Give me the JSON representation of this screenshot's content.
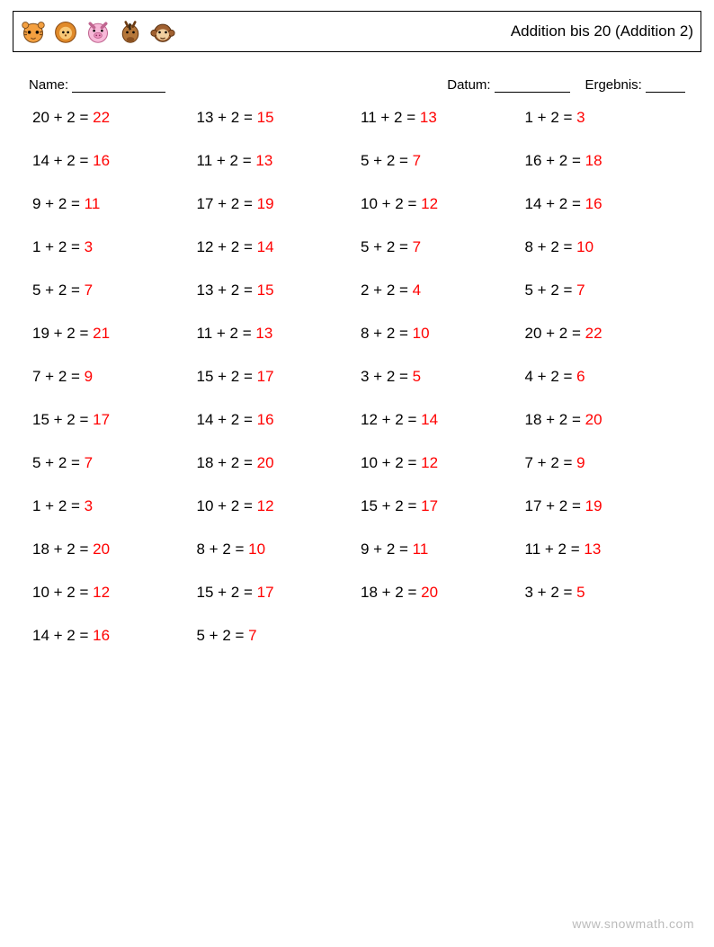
{
  "header": {
    "title": "Addition bis 20 (Addition 2)",
    "icons": [
      "tiger-icon",
      "lion-icon",
      "pig-icon",
      "horse-icon",
      "monkey-icon"
    ]
  },
  "meta": {
    "name_label": "Name:",
    "name_blank_width": 104,
    "date_label": "Datum:",
    "date_blank_width": 84,
    "result_label": "Ergebnis:",
    "result_blank_width": 44
  },
  "worksheet": {
    "type": "table",
    "font_size": 17,
    "answer_color": "#ff0000",
    "text_color": "#000000",
    "columns": 4,
    "row_gap": 28,
    "rows": [
      [
        {
          "a": 20,
          "b": 2,
          "ans": 22
        },
        {
          "a": 13,
          "b": 2,
          "ans": 15
        },
        {
          "a": 11,
          "b": 2,
          "ans": 13
        },
        {
          "a": 1,
          "b": 2,
          "ans": 3
        }
      ],
      [
        {
          "a": 14,
          "b": 2,
          "ans": 16
        },
        {
          "a": 11,
          "b": 2,
          "ans": 13
        },
        {
          "a": 5,
          "b": 2,
          "ans": 7
        },
        {
          "a": 16,
          "b": 2,
          "ans": 18
        }
      ],
      [
        {
          "a": 9,
          "b": 2,
          "ans": 11
        },
        {
          "a": 17,
          "b": 2,
          "ans": 19
        },
        {
          "a": 10,
          "b": 2,
          "ans": 12
        },
        {
          "a": 14,
          "b": 2,
          "ans": 16
        }
      ],
      [
        {
          "a": 1,
          "b": 2,
          "ans": 3
        },
        {
          "a": 12,
          "b": 2,
          "ans": 14
        },
        {
          "a": 5,
          "b": 2,
          "ans": 7
        },
        {
          "a": 8,
          "b": 2,
          "ans": 10
        }
      ],
      [
        {
          "a": 5,
          "b": 2,
          "ans": 7
        },
        {
          "a": 13,
          "b": 2,
          "ans": 15
        },
        {
          "a": 2,
          "b": 2,
          "ans": 4
        },
        {
          "a": 5,
          "b": 2,
          "ans": 7
        }
      ],
      [
        {
          "a": 19,
          "b": 2,
          "ans": 21
        },
        {
          "a": 11,
          "b": 2,
          "ans": 13
        },
        {
          "a": 8,
          "b": 2,
          "ans": 10
        },
        {
          "a": 20,
          "b": 2,
          "ans": 22
        }
      ],
      [
        {
          "a": 7,
          "b": 2,
          "ans": 9
        },
        {
          "a": 15,
          "b": 2,
          "ans": 17
        },
        {
          "a": 3,
          "b": 2,
          "ans": 5
        },
        {
          "a": 4,
          "b": 2,
          "ans": 6
        }
      ],
      [
        {
          "a": 15,
          "b": 2,
          "ans": 17
        },
        {
          "a": 14,
          "b": 2,
          "ans": 16
        },
        {
          "a": 12,
          "b": 2,
          "ans": 14
        },
        {
          "a": 18,
          "b": 2,
          "ans": 20
        }
      ],
      [
        {
          "a": 5,
          "b": 2,
          "ans": 7
        },
        {
          "a": 18,
          "b": 2,
          "ans": 20
        },
        {
          "a": 10,
          "b": 2,
          "ans": 12
        },
        {
          "a": 7,
          "b": 2,
          "ans": 9
        }
      ],
      [
        {
          "a": 1,
          "b": 2,
          "ans": 3
        },
        {
          "a": 10,
          "b": 2,
          "ans": 12
        },
        {
          "a": 15,
          "b": 2,
          "ans": 17
        },
        {
          "a": 17,
          "b": 2,
          "ans": 19
        }
      ],
      [
        {
          "a": 18,
          "b": 2,
          "ans": 20
        },
        {
          "a": 8,
          "b": 2,
          "ans": 10
        },
        {
          "a": 9,
          "b": 2,
          "ans": 11
        },
        {
          "a": 11,
          "b": 2,
          "ans": 13
        }
      ],
      [
        {
          "a": 10,
          "b": 2,
          "ans": 12
        },
        {
          "a": 15,
          "b": 2,
          "ans": 17
        },
        {
          "a": 18,
          "b": 2,
          "ans": 20
        },
        {
          "a": 3,
          "b": 2,
          "ans": 5
        }
      ],
      [
        {
          "a": 14,
          "b": 2,
          "ans": 16
        },
        {
          "a": 5,
          "b": 2,
          "ans": 7
        },
        null,
        null
      ]
    ]
  },
  "watermark": "www.snowmath.com"
}
